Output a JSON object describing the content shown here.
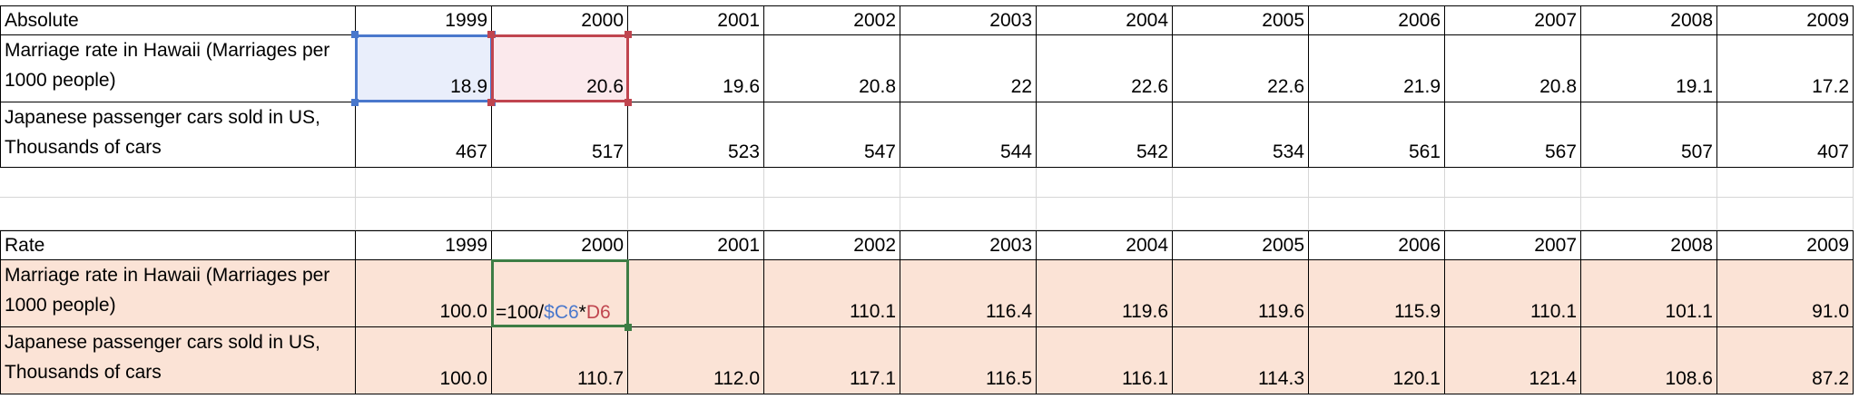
{
  "tables": [
    {
      "header": "Absolute",
      "years": [
        1999,
        2000,
        2001,
        2002,
        2003,
        2004,
        2005,
        2006,
        2007,
        2008,
        2009
      ],
      "rows": [
        {
          "label": "Marriage rate in Hawaii (Marriages per 1000 people)",
          "values": [
            "18.9",
            "20.6",
            "19.6",
            "20.8",
            "22",
            "22.6",
            "22.6",
            "21.9",
            "20.8",
            "19.1",
            "17.2"
          ]
        },
        {
          "label": "Japanese passenger cars sold in US, Thousands of cars",
          "values": [
            "467",
            "517",
            "523",
            "547",
            "544",
            "542",
            "534",
            "561",
            "567",
            "507",
            "407"
          ]
        }
      ]
    },
    {
      "header": "Rate",
      "years": [
        1999,
        2000,
        2001,
        2002,
        2003,
        2004,
        2005,
        2006,
        2007,
        2008,
        2009
      ],
      "rows": [
        {
          "label": "Marriage rate in Hawaii (Marriages per 1000 people)",
          "values": [
            "100.0",
            null,
            null,
            "110.1",
            "116.4",
            "119.6",
            "119.6",
            "115.9",
            "110.1",
            "101.1",
            "91.0"
          ]
        },
        {
          "label": "Japanese passenger cars sold in US, Thousands of cars",
          "values": [
            "100.0",
            "110.7",
            "112.0",
            "117.1",
            "116.5",
            "116.1",
            "114.3",
            "120.1",
            "121.4",
            "108.6",
            "87.2"
          ]
        }
      ]
    }
  ],
  "formula": {
    "parts": [
      "=100/",
      "$C6",
      "*",
      "D6"
    ]
  }
}
